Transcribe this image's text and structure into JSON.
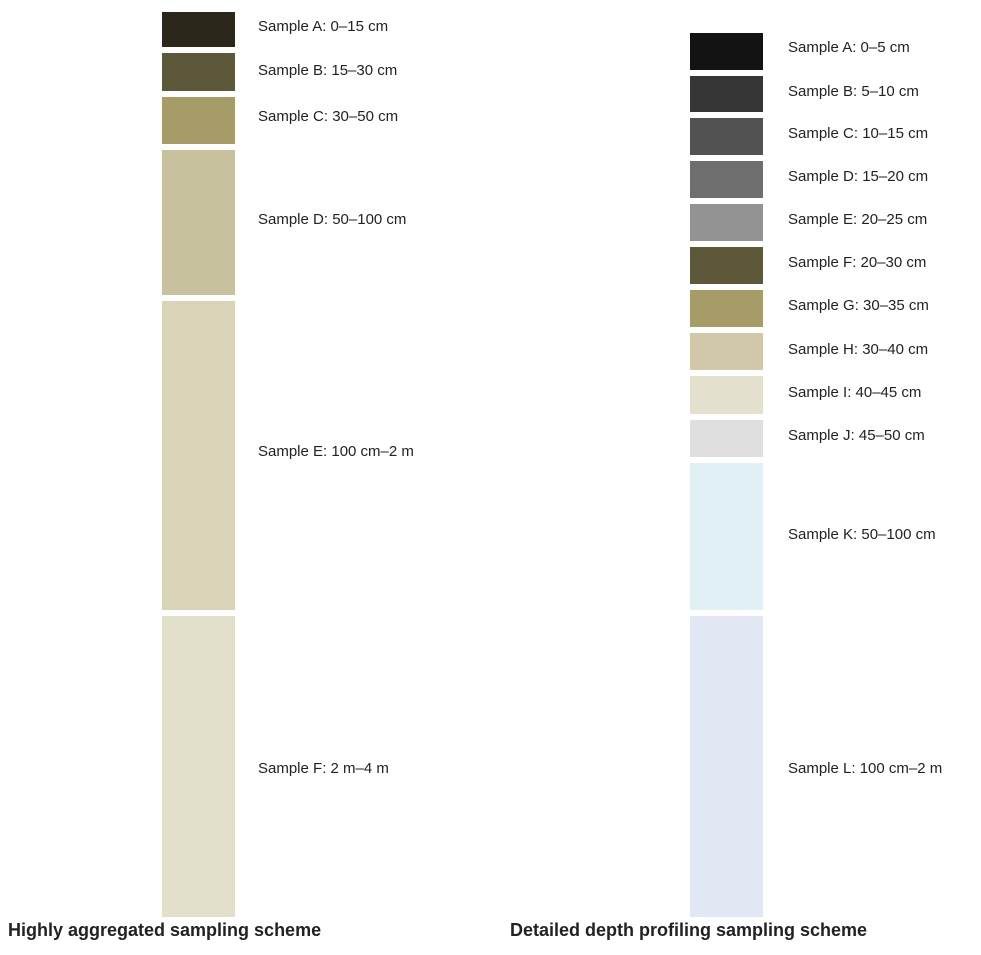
{
  "left_scheme": {
    "caption": "Highly aggregated sampling scheme",
    "samples": [
      {
        "label": "Sample A: 0–15 cm",
        "color": "#2b281b"
      },
      {
        "label": "Sample B: 15–30 cm",
        "color": "#5d583a"
      },
      {
        "label": "Sample C: 30–50 cm",
        "color": "#a59c67"
      },
      {
        "label": "Sample D: 50–100 cm",
        "color": "#c8c19d"
      },
      {
        "label": "Sample E: 100 cm–2 m",
        "color": "#d9d3b7"
      },
      {
        "label": "Sample F: 2 m–4 m",
        "color": "#e2dfca"
      }
    ]
  },
  "right_scheme": {
    "caption": "Detailed depth profiling sampling scheme",
    "samples": [
      {
        "label": "Sample A: 0–5 cm",
        "color": "#131313"
      },
      {
        "label": "Sample B: 5–10 cm",
        "color": "#363636"
      },
      {
        "label": "Sample C: 10–15 cm",
        "color": "#525252"
      },
      {
        "label": "Sample D: 15–20 cm",
        "color": "#6e6e6e"
      },
      {
        "label": "Sample E: 20–25 cm",
        "color": "#939393"
      },
      {
        "label": "Sample F: 20–30 cm",
        "color": "#5d583a"
      },
      {
        "label": "Sample G: 30–35 cm",
        "color": "#a59c67"
      },
      {
        "label": "Sample H: 30–40 cm",
        "color": "#d0c8a8"
      },
      {
        "label": "Sample I: 40–45 cm",
        "color": "#e3e0cd"
      },
      {
        "label": "Sample J: 45–50 cm",
        "color": "#dfdfdf"
      },
      {
        "label": "Sample K: 50–100 cm",
        "color": "#e1f0f5"
      },
      {
        "label": "Sample L: 100 cm–2 m",
        "color": "#e1e8f3"
      }
    ]
  }
}
